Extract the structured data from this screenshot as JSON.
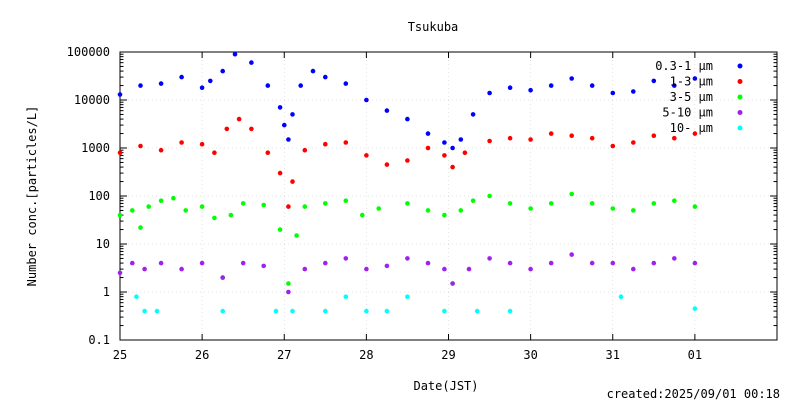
{
  "chart_data": {
    "type": "scatter",
    "title": "Tsukuba",
    "xlabel": "Date(JST)",
    "ylabel": "Number conc.[particles/L]",
    "y_scale": "log",
    "ylim": [
      0.1,
      100000
    ],
    "xlim": [
      25,
      33
    ],
    "x_tick_labels": [
      "25",
      "26",
      "27",
      "28",
      "29",
      "30",
      "31",
      "01"
    ],
    "y_tick_labels": [
      "0.1",
      "1",
      "10",
      "100",
      "1000",
      "10000",
      "100000"
    ],
    "grid": true,
    "legend_position": "top-right",
    "footer": "created:2025/09/01 00:18",
    "series": [
      {
        "name": "0.3-1 μm",
        "color": "#0000ff",
        "points": [
          [
            25.0,
            13000
          ],
          [
            25.25,
            20000
          ],
          [
            25.5,
            22000
          ],
          [
            25.75,
            30000
          ],
          [
            26.0,
            18000
          ],
          [
            26.1,
            25000
          ],
          [
            26.25,
            40000
          ],
          [
            26.4,
            90000
          ],
          [
            26.6,
            60000
          ],
          [
            26.8,
            20000
          ],
          [
            26.95,
            7000
          ],
          [
            27.0,
            3000
          ],
          [
            27.05,
            1500
          ],
          [
            27.1,
            5000
          ],
          [
            27.2,
            20000
          ],
          [
            27.35,
            40000
          ],
          [
            27.5,
            30000
          ],
          [
            27.75,
            22000
          ],
          [
            28.0,
            10000
          ],
          [
            28.25,
            6000
          ],
          [
            28.5,
            4000
          ],
          [
            28.75,
            2000
          ],
          [
            28.95,
            1300
          ],
          [
            29.05,
            1000
          ],
          [
            29.15,
            1500
          ],
          [
            29.3,
            5000
          ],
          [
            29.5,
            14000
          ],
          [
            29.75,
            18000
          ],
          [
            30.0,
            16000
          ],
          [
            30.25,
            20000
          ],
          [
            30.5,
            28000
          ],
          [
            30.75,
            20000
          ],
          [
            31.0,
            14000
          ],
          [
            31.25,
            15000
          ],
          [
            31.5,
            25000
          ],
          [
            31.75,
            20000
          ],
          [
            32.0,
            28000
          ]
        ]
      },
      {
        "name": "1-3 μm",
        "color": "#ff0000",
        "points": [
          [
            25.0,
            800
          ],
          [
            25.25,
            1100
          ],
          [
            25.5,
            900
          ],
          [
            25.75,
            1300
          ],
          [
            26.0,
            1200
          ],
          [
            26.15,
            800
          ],
          [
            26.3,
            2500
          ],
          [
            26.45,
            4000
          ],
          [
            26.6,
            2500
          ],
          [
            26.8,
            800
          ],
          [
            26.95,
            300
          ],
          [
            27.05,
            60
          ],
          [
            27.1,
            200
          ],
          [
            27.25,
            900
          ],
          [
            27.5,
            1200
          ],
          [
            27.75,
            1300
          ],
          [
            28.0,
            700
          ],
          [
            28.25,
            450
          ],
          [
            28.5,
            550
          ],
          [
            28.75,
            1000
          ],
          [
            28.95,
            700
          ],
          [
            29.05,
            400
          ],
          [
            29.2,
            800
          ],
          [
            29.5,
            1400
          ],
          [
            29.75,
            1600
          ],
          [
            30.0,
            1500
          ],
          [
            30.25,
            2000
          ],
          [
            30.5,
            1800
          ],
          [
            30.75,
            1600
          ],
          [
            31.0,
            1100
          ],
          [
            31.25,
            1300
          ],
          [
            31.5,
            1800
          ],
          [
            31.75,
            1600
          ],
          [
            32.0,
            2000
          ]
        ]
      },
      {
        "name": "3-5 μm",
        "color": "#00ff00",
        "points": [
          [
            25.0,
            40
          ],
          [
            25.15,
            50
          ],
          [
            25.25,
            22
          ],
          [
            25.35,
            60
          ],
          [
            25.5,
            80
          ],
          [
            25.65,
            90
          ],
          [
            25.8,
            50
          ],
          [
            26.0,
            60
          ],
          [
            26.15,
            35
          ],
          [
            26.25,
            2
          ],
          [
            26.35,
            40
          ],
          [
            26.5,
            70
          ],
          [
            26.75,
            65
          ],
          [
            26.95,
            20
          ],
          [
            27.05,
            1.5
          ],
          [
            27.15,
            15
          ],
          [
            27.25,
            60
          ],
          [
            27.5,
            70
          ],
          [
            27.75,
            80
          ],
          [
            27.95,
            40
          ],
          [
            28.15,
            55
          ],
          [
            28.5,
            70
          ],
          [
            28.75,
            50
          ],
          [
            28.95,
            40
          ],
          [
            29.05,
            1.5
          ],
          [
            29.15,
            50
          ],
          [
            29.3,
            80
          ],
          [
            29.5,
            100
          ],
          [
            29.75,
            70
          ],
          [
            30.0,
            55
          ],
          [
            30.25,
            70
          ],
          [
            30.5,
            110
          ],
          [
            30.75,
            70
          ],
          [
            31.0,
            55
          ],
          [
            31.25,
            50
          ],
          [
            31.5,
            70
          ],
          [
            31.75,
            80
          ],
          [
            32.0,
            60
          ]
        ]
      },
      {
        "name": "5-10 μm",
        "color": "#a020f0",
        "points": [
          [
            25.0,
            2.5
          ],
          [
            25.15,
            4
          ],
          [
            25.3,
            3
          ],
          [
            25.5,
            4
          ],
          [
            25.75,
            3
          ],
          [
            26.0,
            4
          ],
          [
            26.25,
            2
          ],
          [
            26.5,
            4
          ],
          [
            26.75,
            3.5
          ],
          [
            27.05,
            1
          ],
          [
            27.25,
            3
          ],
          [
            27.5,
            4
          ],
          [
            27.75,
            5
          ],
          [
            28.0,
            3
          ],
          [
            28.25,
            3.5
          ],
          [
            28.5,
            5
          ],
          [
            28.75,
            4
          ],
          [
            28.95,
            3
          ],
          [
            29.05,
            1.5
          ],
          [
            29.25,
            3
          ],
          [
            29.5,
            5
          ],
          [
            29.75,
            4
          ],
          [
            30.0,
            3
          ],
          [
            30.25,
            4
          ],
          [
            30.5,
            6
          ],
          [
            30.75,
            4
          ],
          [
            31.0,
            4
          ],
          [
            31.25,
            3
          ],
          [
            31.5,
            4
          ],
          [
            31.75,
            5
          ],
          [
            32.0,
            4
          ]
        ]
      },
      {
        "name": "10- μm",
        "color": "#00ffff",
        "points": [
          [
            25.2,
            0.8
          ],
          [
            25.3,
            0.4
          ],
          [
            25.45,
            0.4
          ],
          [
            26.25,
            0.4
          ],
          [
            26.9,
            0.4
          ],
          [
            27.1,
            0.4
          ],
          [
            27.5,
            0.4
          ],
          [
            27.75,
            0.8
          ],
          [
            28.0,
            0.4
          ],
          [
            28.25,
            0.4
          ],
          [
            28.5,
            0.8
          ],
          [
            28.95,
            0.4
          ],
          [
            29.35,
            0.4
          ],
          [
            29.75,
            0.4
          ],
          [
            31.1,
            0.8
          ],
          [
            32.0,
            0.45
          ]
        ]
      }
    ]
  }
}
